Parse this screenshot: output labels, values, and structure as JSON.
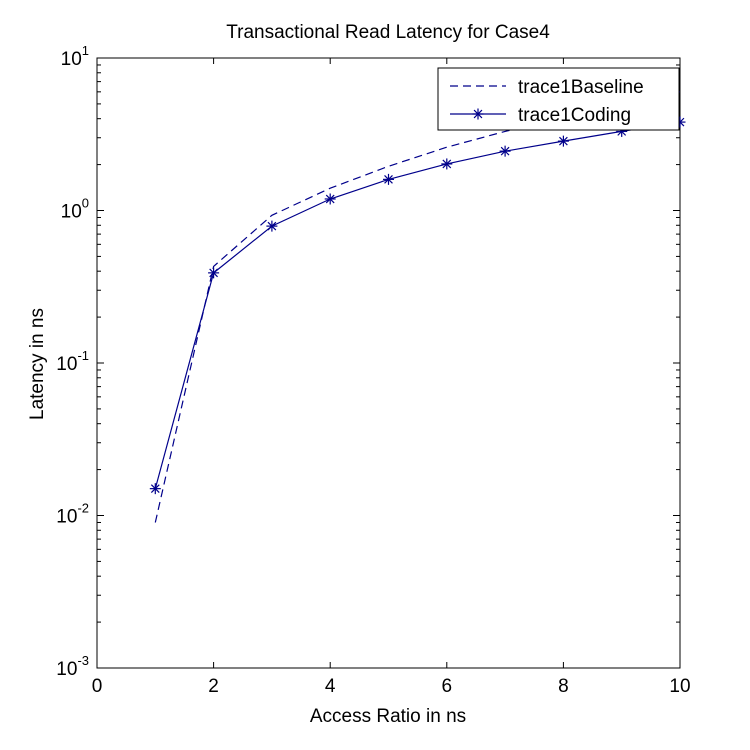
{
  "chart_data": {
    "type": "line",
    "title": "Transactional Read Latency for Case4",
    "xlabel": "Access Ratio in ns",
    "ylabel": "Latency in ns",
    "xlim": [
      0,
      10
    ],
    "ylim": [
      0.001,
      10
    ],
    "yscale": "log",
    "grid": false,
    "legend_position": "top-right",
    "x_ticks": [
      {
        "value": 0,
        "label": "0"
      },
      {
        "value": 2,
        "label": "2"
      },
      {
        "value": 4,
        "label": "4"
      },
      {
        "value": 6,
        "label": "6"
      },
      {
        "value": 8,
        "label": "8"
      },
      {
        "value": 10,
        "label": "10"
      }
    ],
    "y_ticks": [
      {
        "value": 0.001,
        "base": "10",
        "exp": "-3"
      },
      {
        "value": 0.01,
        "base": "10",
        "exp": "-2"
      },
      {
        "value": 0.1,
        "base": "10",
        "exp": "-1"
      },
      {
        "value": 1,
        "base": "10",
        "exp": "0"
      },
      {
        "value": 10,
        "base": "10",
        "exp": "1"
      }
    ],
    "series": [
      {
        "name": "trace1Baseline",
        "color": "#00008b",
        "line_style": "dashed",
        "marker": "none",
        "x": [
          1,
          2,
          3,
          4,
          5,
          6,
          7,
          8,
          9,
          10
        ],
        "y": [
          0.009,
          0.43,
          0.93,
          1.4,
          1.95,
          2.6,
          3.3,
          4.0,
          4.9,
          6.0
        ]
      },
      {
        "name": "trace1Coding",
        "color": "#00008b",
        "line_style": "solid",
        "marker": "asterisk",
        "x": [
          1,
          2,
          3,
          4,
          5,
          6,
          7,
          8,
          9,
          10
        ],
        "y": [
          0.015,
          0.39,
          0.79,
          1.19,
          1.6,
          2.02,
          2.45,
          2.85,
          3.3,
          3.8
        ]
      }
    ]
  }
}
